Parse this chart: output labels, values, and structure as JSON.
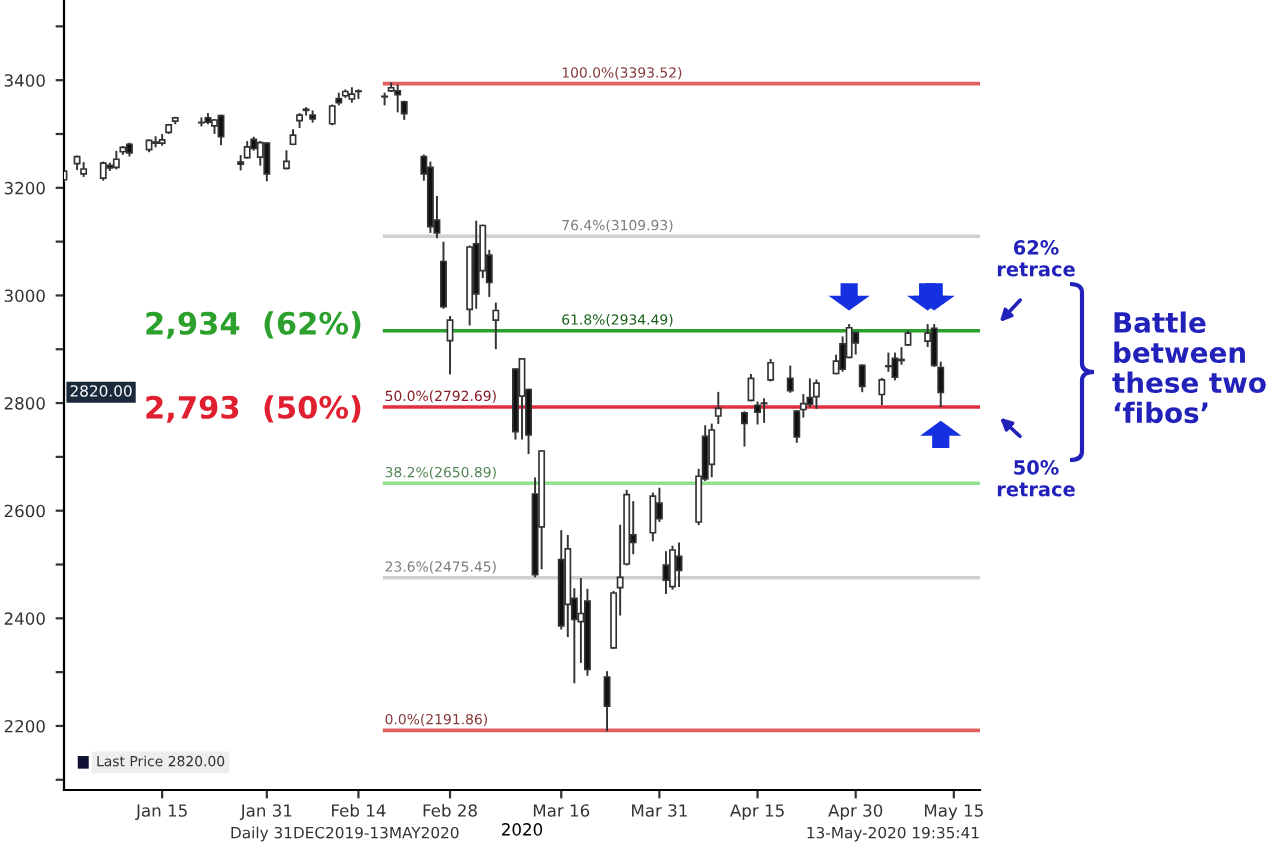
{
  "chart_data": {
    "type": "candlestick",
    "xlabel": "2020",
    "x": [
      "2019-12-31",
      "2020-01-02",
      "2020-01-03",
      "2020-01-06",
      "2020-01-07",
      "2020-01-08",
      "2020-01-09",
      "2020-01-10",
      "2020-01-13",
      "2020-01-14",
      "2020-01-15",
      "2020-01-16",
      "2020-01-17",
      "2020-01-21",
      "2020-01-22",
      "2020-01-23",
      "2020-01-24",
      "2020-01-27",
      "2020-01-28",
      "2020-01-29",
      "2020-01-30",
      "2020-01-31",
      "2020-02-03",
      "2020-02-04",
      "2020-02-05",
      "2020-02-06",
      "2020-02-07",
      "2020-02-10",
      "2020-02-11",
      "2020-02-12",
      "2020-02-13",
      "2020-02-14",
      "2020-02-18",
      "2020-02-19",
      "2020-02-20",
      "2020-02-21",
      "2020-02-24",
      "2020-02-25",
      "2020-02-26",
      "2020-02-27",
      "2020-02-28",
      "2020-03-02",
      "2020-03-03",
      "2020-03-04",
      "2020-03-05",
      "2020-03-06",
      "2020-03-09",
      "2020-03-10",
      "2020-03-11",
      "2020-03-12",
      "2020-03-13",
      "2020-03-16",
      "2020-03-17",
      "2020-03-18",
      "2020-03-19",
      "2020-03-20",
      "2020-03-23",
      "2020-03-24",
      "2020-03-25",
      "2020-03-26",
      "2020-03-27",
      "2020-03-30",
      "2020-03-31",
      "2020-04-01",
      "2020-04-02",
      "2020-04-03",
      "2020-04-06",
      "2020-04-07",
      "2020-04-08",
      "2020-04-09",
      "2020-04-13",
      "2020-04-14",
      "2020-04-15",
      "2020-04-16",
      "2020-04-17",
      "2020-04-20",
      "2020-04-21",
      "2020-04-22",
      "2020-04-23",
      "2020-04-24",
      "2020-04-27",
      "2020-04-28",
      "2020-04-29",
      "2020-04-30",
      "2020-05-01",
      "2020-05-04",
      "2020-05-05",
      "2020-05-06",
      "2020-05-07",
      "2020-05-08",
      "2020-05-11",
      "2020-05-12",
      "2020-05-13"
    ],
    "ohlc": [
      [
        3215,
        3231,
        3212,
        3231
      ],
      [
        3245,
        3258,
        3235,
        3258
      ],
      [
        3226,
        3246,
        3222,
        3235
      ],
      [
        3218,
        3247,
        3215,
        3246
      ],
      [
        3242,
        3245,
        3233,
        3237
      ],
      [
        3238,
        3267,
        3236,
        3253
      ],
      [
        3267,
        3276,
        3263,
        3275
      ],
      [
        3281,
        3282,
        3260,
        3265
      ],
      [
        3271,
        3288,
        3268,
        3288
      ],
      [
        3285,
        3294,
        3277,
        3283
      ],
      [
        3283,
        3298,
        3280,
        3289
      ],
      [
        3303,
        3317,
        3302,
        3317
      ],
      [
        3324,
        3330,
        3320,
        3330
      ],
      [
        3321,
        3329,
        3316,
        3321
      ],
      [
        3330,
        3337,
        3320,
        3322
      ],
      [
        3315,
        3326,
        3302,
        3326
      ],
      [
        3334,
        3334,
        3281,
        3295
      ],
      [
        3248,
        3259,
        3234,
        3244
      ],
      [
        3256,
        3285,
        3256,
        3276
      ],
      [
        3290,
        3293,
        3271,
        3273
      ],
      [
        3257,
        3285,
        3243,
        3284
      ],
      [
        3283,
        3283,
        3214,
        3226
      ],
      [
        3236,
        3268,
        3236,
        3249
      ],
      [
        3281,
        3307,
        3281,
        3298
      ],
      [
        3325,
        3337,
        3313,
        3335
      ],
      [
        3344,
        3348,
        3336,
        3346
      ],
      [
        3335,
        3342,
        3323,
        3328
      ],
      [
        3319,
        3353,
        3318,
        3352
      ],
      [
        3366,
        3375,
        3355,
        3358
      ],
      [
        3371,
        3381,
        3369,
        3379
      ],
      [
        3365,
        3385,
        3360,
        3374
      ],
      [
        3379,
        3381,
        3367,
        3380
      ],
      [
        3369,
        3375,
        3355,
        3370
      ],
      [
        3380,
        3394,
        3380,
        3386
      ],
      [
        3380,
        3390,
        3342,
        3373
      ],
      [
        3360,
        3360,
        3328,
        3338
      ],
      [
        3258,
        3260,
        3215,
        3226
      ],
      [
        3238,
        3247,
        3118,
        3128
      ],
      [
        3140,
        3183,
        3108,
        3116
      ],
      [
        3063,
        3098,
        2977,
        2979
      ],
      [
        2916,
        2960,
        2855,
        2954
      ],
      [
        2974,
        3091,
        2946,
        3090
      ],
      [
        3096,
        3137,
        2977,
        3003
      ],
      [
        3046,
        3130,
        3034,
        3130
      ],
      [
        3075,
        3083,
        2999,
        3024
      ],
      [
        2954,
        2985,
        2902,
        2972
      ],
      [
        2863,
        2863,
        2734,
        2747
      ],
      [
        2813,
        2882,
        2734,
        2882
      ],
      [
        2825,
        2825,
        2707,
        2741
      ],
      [
        2631,
        2660,
        2478,
        2481
      ],
      [
        2570,
        2711,
        2493,
        2711
      ],
      [
        2509,
        2562,
        2381,
        2386
      ],
      [
        2426,
        2553,
        2367,
        2529
      ],
      [
        2437,
        2454,
        2281,
        2398
      ],
      [
        2394,
        2473,
        2319,
        2409
      ],
      [
        2432,
        2453,
        2295,
        2305
      ],
      [
        2291,
        2300,
        2192,
        2237
      ],
      [
        2345,
        2449,
        2345,
        2447
      ],
      [
        2457,
        2572,
        2407,
        2476
      ],
      [
        2501,
        2637,
        2500,
        2630
      ],
      [
        2555,
        2616,
        2521,
        2541
      ],
      [
        2559,
        2632,
        2545,
        2627
      ],
      [
        2614,
        2641,
        2581,
        2585
      ],
      [
        2499,
        2523,
        2447,
        2471
      ],
      [
        2459,
        2533,
        2455,
        2527
      ],
      [
        2515,
        2539,
        2460,
        2489
      ],
      [
        2579,
        2676,
        2575,
        2664
      ],
      [
        2738,
        2757,
        2657,
        2659
      ],
      [
        2686,
        2760,
        2664,
        2750
      ],
      [
        2776,
        2819,
        2763,
        2790
      ],
      [
        2782,
        2783,
        2721,
        2762
      ],
      [
        2805,
        2852,
        2805,
        2846
      ],
      [
        2796,
        2801,
        2762,
        2783
      ],
      [
        2799,
        2807,
        2765,
        2800
      ],
      [
        2843,
        2880,
        2842,
        2875
      ],
      [
        2846,
        2868,
        2821,
        2823
      ],
      [
        2785,
        2785,
        2728,
        2737
      ],
      [
        2788,
        2815,
        2775,
        2799
      ],
      [
        2810,
        2844,
        2794,
        2798
      ],
      [
        2812,
        2842,
        2791,
        2837
      ],
      [
        2855,
        2888,
        2855,
        2878
      ],
      [
        2910,
        2922,
        2860,
        2863
      ],
      [
        2885,
        2945,
        2885,
        2940
      ],
      [
        2931,
        2931,
        2892,
        2912
      ],
      [
        2870,
        2870,
        2822,
        2831
      ],
      [
        2816,
        2845,
        2798,
        2843
      ],
      [
        2869,
        2892,
        2860,
        2868
      ],
      [
        2883,
        2892,
        2844,
        2848
      ],
      [
        2879,
        2902,
        2873,
        2881
      ],
      [
        2908,
        2933,
        2908,
        2930
      ],
      [
        2915,
        2945,
        2906,
        2930
      ],
      [
        2939,
        2945,
        2869,
        2870
      ],
      [
        2866,
        2875,
        2794,
        2820
      ]
    ],
    "xlim": [
      "2019-12-31",
      "2020-05-19"
    ],
    "xticks": [
      {
        "value": "2020-01-15",
        "label": "Jan 15"
      },
      {
        "value": "2020-01-31",
        "label": "Jan 31"
      },
      {
        "value": "2020-02-14",
        "label": "Feb 14"
      },
      {
        "value": "2020-02-28",
        "label": "Feb 28"
      },
      {
        "value": "2020-03-16",
        "label": "Mar 16"
      },
      {
        "value": "2020-03-31",
        "label": "Mar 31"
      },
      {
        "value": "2020-04-15",
        "label": "Apr 15"
      },
      {
        "value": "2020-04-30",
        "label": "Apr 30"
      },
      {
        "value": "2020-05-15",
        "label": "May 15"
      }
    ],
    "ylim": [
      2081,
      3549
    ],
    "yticks": [
      {
        "value": 2100,
        "label": null
      },
      2200,
      {
        "value": 2300,
        "label": null
      },
      2400,
      {
        "value": 2500,
        "label": null
      },
      2600,
      {
        "value": 2700,
        "label": null
      },
      2800,
      {
        "value": 2900,
        "label": null
      },
      3000,
      {
        "value": 3100,
        "label": null
      },
      3200,
      {
        "value": 3300,
        "label": null
      },
      3400,
      {
        "value": 3500,
        "label": null
      }
    ],
    "ref_lines": [
      {
        "axis": "y",
        "value": 3393.52,
        "label": "100.0%(3393.52)",
        "color": "#e06060"
      },
      {
        "axis": "y",
        "value": 3109.93,
        "label": "76.4%(3109.93)",
        "color": "#d0d0d0"
      },
      {
        "axis": "y",
        "value": 2934.49,
        "label": "61.8%(2934.49)",
        "color": "#2ca02c"
      },
      {
        "axis": "y",
        "value": 2792.69,
        "label": "50.0%(2792.69)",
        "color": "#e03040"
      },
      {
        "axis": "y",
        "value": 2650.89,
        "label": "38.2%(2650.89)",
        "color": "#90e090"
      },
      {
        "axis": "y",
        "value": 2475.45,
        "label": "23.6%(2475.45)",
        "color": "#d0d0d0"
      },
      {
        "axis": "y",
        "value": 2191.86,
        "label": "0.0%(2191.86)",
        "color": "#e06060"
      }
    ],
    "annotations": [
      "2,934  (62%)",
      "2,793  (50%)",
      "62%\nretrace",
      "50%\nretrace",
      "Battle\nbetween\nthese two\n‘fibos’",
      {
        "text": "2820.00",
        "y": 2820
      },
      "Last Price 2820.00",
      "Daily 31DEC2019-13MAY2020",
      "13-May-2020 19:35:41"
    ],
    "legend": false,
    "grid": false
  }
}
